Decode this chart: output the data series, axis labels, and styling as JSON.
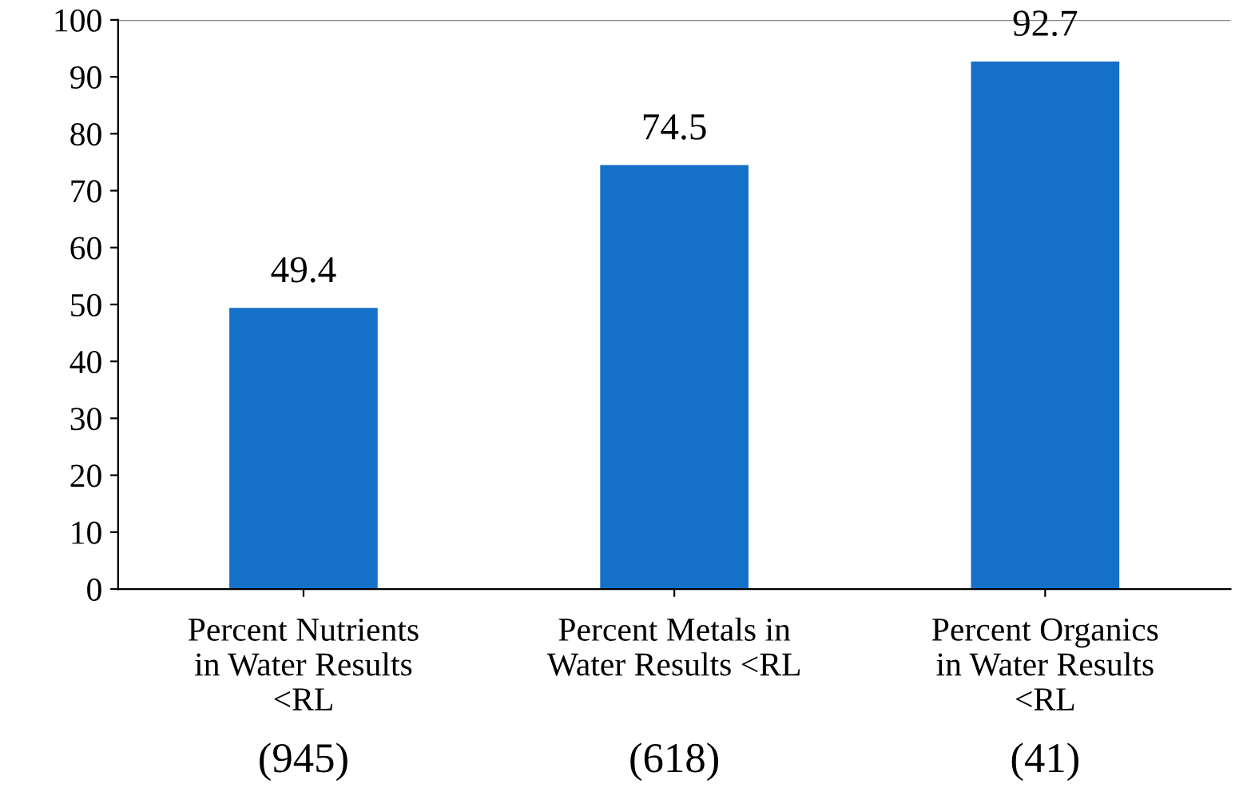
{
  "chart_data": {
    "type": "bar",
    "categories": [
      "Percent Nutrients in Water Results <RL",
      "Percent Metals in Water Results <RL",
      "Percent Organics in Water Results <RL"
    ],
    "values": [
      49.4,
      74.5,
      92.7
    ],
    "color": "#1570c8",
    "ylim": [
      0,
      100
    ],
    "yticks": [
      0,
      10,
      20,
      30,
      40,
      50,
      60,
      70,
      80,
      90,
      100
    ],
    "data_labels": true,
    "grid": false,
    "annotations": [
      "(945)",
      "(618)",
      "(41)"
    ]
  }
}
